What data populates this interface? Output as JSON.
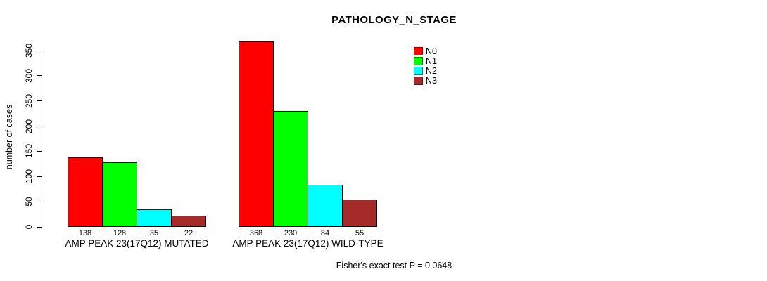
{
  "chart_data": {
    "type": "bar",
    "title": "PATHOLOGY_N_STAGE",
    "ylabel": "number of cases",
    "xlabel": "",
    "ylim": [
      0,
      350
    ],
    "yticks": [
      0,
      50,
      100,
      150,
      200,
      250,
      300,
      350
    ],
    "grid": false,
    "legend_position": "top-right",
    "categories": [
      "AMP PEAK 23(17Q12) MUTATED",
      "AMP PEAK 23(17Q12) WILD-TYPE"
    ],
    "series": [
      {
        "name": "N0",
        "color": "#FF0000",
        "values": [
          138,
          368
        ]
      },
      {
        "name": "N1",
        "color": "#00FF00",
        "values": [
          128,
          230
        ]
      },
      {
        "name": "N2",
        "color": "#00FFFF",
        "values": [
          35,
          84
        ]
      },
      {
        "name": "N3",
        "color": "#A52A2A",
        "values": [
          22,
          55
        ]
      }
    ],
    "bar_value_labels": {
      "AMP PEAK 23(17Q12) MUTATED": [
        138,
        128,
        35,
        22
      ],
      "AMP PEAK 23(17Q12) WILD-TYPE": [
        368,
        230,
        84,
        55
      ]
    },
    "annotation": "Fisher's exact test P = 0.0648"
  }
}
